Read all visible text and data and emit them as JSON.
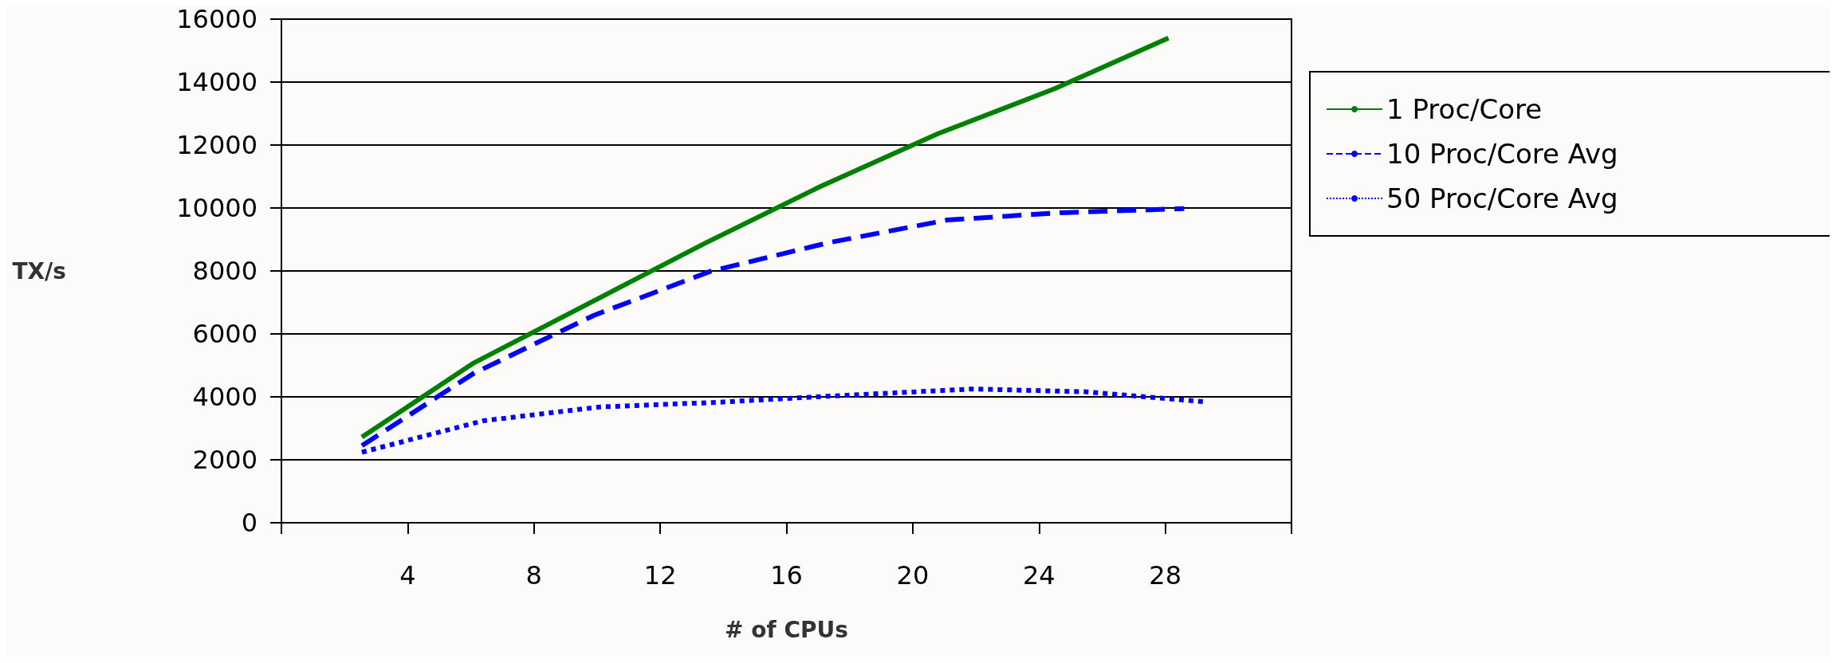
{
  "chart_data": {
    "type": "line",
    "xlabel": "# of CPUs",
    "ylabel": "TX/s",
    "xlim": [
      0,
      32
    ],
    "xticks": [
      {
        "value": 0,
        "label": null
      },
      4,
      8,
      12,
      16,
      20,
      24,
      28,
      {
        "value": 32,
        "label": null
      }
    ],
    "ylim": [
      0,
      16000
    ],
    "yticks": [
      0,
      2000,
      4000,
      6000,
      8000,
      10000,
      12000,
      14000,
      16000
    ],
    "grid": "y",
    "legend": "right",
    "marker": "none",
    "series": [
      {
        "name": "1 Proc/Core",
        "color": "#008000",
        "line_style": "solid",
        "x": [
          2.55,
          6.1,
          13.4,
          17.05,
          20.8,
          24.5,
          28.1
        ],
        "values": [
          2720,
          5080,
          8870,
          10670,
          12360,
          13790,
          15400
        ]
      },
      {
        "name": "10 Proc/Core Avg",
        "color": "#0000ff",
        "line_style": "dashed",
        "x": [
          2.55,
          6.1,
          9.9,
          13.6,
          17.3,
          21.1,
          24.7,
          28.6
        ],
        "values": [
          2450,
          4750,
          6590,
          7990,
          8890,
          9620,
          9850,
          9980
        ]
      },
      {
        "name": "50 Proc/Core Avg",
        "color": "#0000ff",
        "line_style": "dotted",
        "x": [
          2.55,
          6.4,
          10.1,
          13.9,
          17.3,
          21.9,
          25.5,
          29.2
        ],
        "values": [
          2240,
          3240,
          3680,
          3830,
          4020,
          4250,
          4160,
          3850
        ]
      }
    ]
  }
}
